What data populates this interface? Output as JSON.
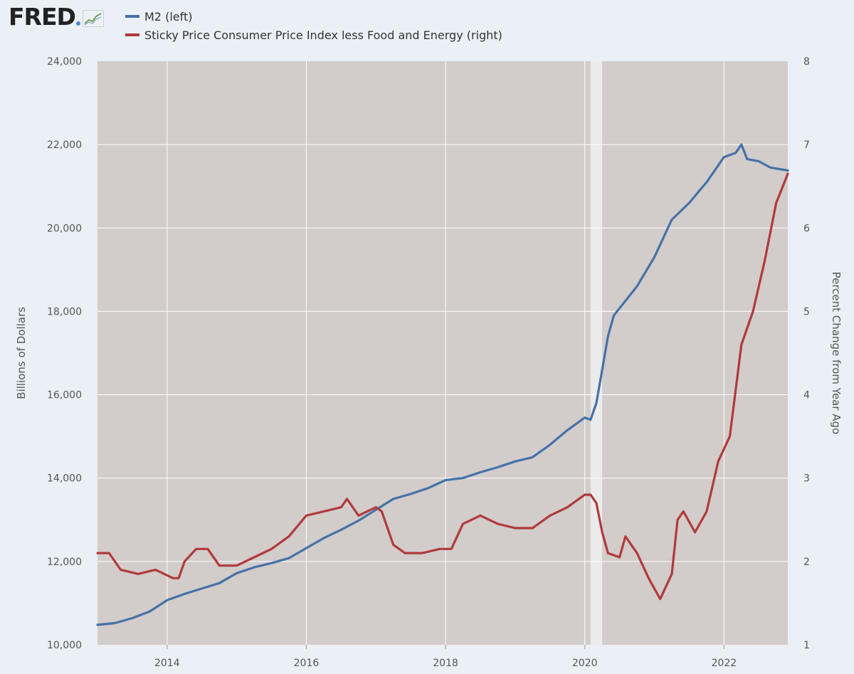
{
  "header": {
    "logo_text": "FRED",
    "logo_icon": "line-chart-icon"
  },
  "colors": {
    "m2": "#4572a7",
    "sticky_cpi": "#b03b3a",
    "plot_bg": "#d2cccb",
    "recession": "#ebebeb",
    "grid": "#ffffff",
    "page_bg": "#eaf0f5"
  },
  "chart_data": {
    "type": "line",
    "title": "",
    "legend_position": "top-left",
    "grid": true,
    "x_axis": {
      "ticks": [
        "2014",
        "2016",
        "2018",
        "2020",
        "2022"
      ],
      "range": [
        "2013-01",
        "2022-12"
      ]
    },
    "y_left": {
      "label": "Billions of Dollars",
      "range": [
        10000,
        24000
      ],
      "ticks": [
        "10,000",
        "12,000",
        "14,000",
        "16,000",
        "18,000",
        "20,000",
        "22,000",
        "24,000"
      ]
    },
    "y_right": {
      "label": "Percent Change from Year Ago",
      "range": [
        1,
        8
      ],
      "ticks": [
        "1",
        "2",
        "3",
        "4",
        "5",
        "6",
        "7",
        "8"
      ]
    },
    "shaded_periods": [
      {
        "start": "2020-02",
        "end": "2020-04",
        "label": "recession"
      }
    ],
    "series": [
      {
        "name": "M2 (left)",
        "axis": "left",
        "color": "#4572a7",
        "points": [
          [
            "2013-01",
            10480
          ],
          [
            "2013-04",
            10520
          ],
          [
            "2013-07",
            10640
          ],
          [
            "2013-10",
            10800
          ],
          [
            "2014-01",
            11070
          ],
          [
            "2014-04",
            11220
          ],
          [
            "2014-07",
            11350
          ],
          [
            "2014-10",
            11480
          ],
          [
            "2015-01",
            11720
          ],
          [
            "2015-04",
            11860
          ],
          [
            "2015-07",
            11960
          ],
          [
            "2015-10",
            12080
          ],
          [
            "2016-01",
            12320
          ],
          [
            "2016-04",
            12560
          ],
          [
            "2016-07",
            12760
          ],
          [
            "2016-10",
            12980
          ],
          [
            "2017-01",
            13240
          ],
          [
            "2017-04",
            13500
          ],
          [
            "2017-07",
            13620
          ],
          [
            "2017-10",
            13760
          ],
          [
            "2018-01",
            13950
          ],
          [
            "2018-04",
            14000
          ],
          [
            "2018-07",
            14140
          ],
          [
            "2018-10",
            14260
          ],
          [
            "2019-01",
            14400
          ],
          [
            "2019-04",
            14500
          ],
          [
            "2019-07",
            14800
          ],
          [
            "2019-10",
            15150
          ],
          [
            "2020-01",
            15450
          ],
          [
            "2020-02",
            15400
          ],
          [
            "2020-03",
            15800
          ],
          [
            "2020-04",
            16600
          ],
          [
            "2020-05",
            17400
          ],
          [
            "2020-06",
            17900
          ],
          [
            "2020-08",
            18250
          ],
          [
            "2020-10",
            18600
          ],
          [
            "2021-01",
            19300
          ],
          [
            "2021-04",
            20200
          ],
          [
            "2021-07",
            20600
          ],
          [
            "2021-10",
            21100
          ],
          [
            "2022-01",
            21700
          ],
          [
            "2022-03",
            21800
          ],
          [
            "2022-04",
            22000
          ],
          [
            "2022-05",
            21650
          ],
          [
            "2022-07",
            21600
          ],
          [
            "2022-09",
            21450
          ],
          [
            "2022-12",
            21380
          ]
        ]
      },
      {
        "name": "Sticky Price Consumer Price Index less Food and Energy (right)",
        "axis": "right",
        "color": "#b03b3a",
        "points": [
          [
            "2013-01",
            2.1
          ],
          [
            "2013-03",
            2.1
          ],
          [
            "2013-05",
            1.9
          ],
          [
            "2013-08",
            1.85
          ],
          [
            "2013-11",
            1.9
          ],
          [
            "2014-02",
            1.8
          ],
          [
            "2014-03",
            1.8
          ],
          [
            "2014-04",
            2.0
          ],
          [
            "2014-06",
            2.15
          ],
          [
            "2014-08",
            2.15
          ],
          [
            "2014-10",
            1.95
          ],
          [
            "2015-01",
            1.95
          ],
          [
            "2015-04",
            2.05
          ],
          [
            "2015-07",
            2.15
          ],
          [
            "2015-10",
            2.3
          ],
          [
            "2016-01",
            2.55
          ],
          [
            "2016-04",
            2.6
          ],
          [
            "2016-07",
            2.65
          ],
          [
            "2016-08",
            2.75
          ],
          [
            "2016-10",
            2.55
          ],
          [
            "2017-01",
            2.65
          ],
          [
            "2017-02",
            2.6
          ],
          [
            "2017-04",
            2.2
          ],
          [
            "2017-06",
            2.1
          ],
          [
            "2017-09",
            2.1
          ],
          [
            "2017-12",
            2.15
          ],
          [
            "2018-02",
            2.15
          ],
          [
            "2018-04",
            2.45
          ],
          [
            "2018-07",
            2.55
          ],
          [
            "2018-10",
            2.45
          ],
          [
            "2019-01",
            2.4
          ],
          [
            "2019-04",
            2.4
          ],
          [
            "2019-07",
            2.55
          ],
          [
            "2019-10",
            2.65
          ],
          [
            "2020-01",
            2.8
          ],
          [
            "2020-02",
            2.8
          ],
          [
            "2020-03",
            2.7
          ],
          [
            "2020-04",
            2.35
          ],
          [
            "2020-05",
            2.1
          ],
          [
            "2020-07",
            2.05
          ],
          [
            "2020-08",
            2.3
          ],
          [
            "2020-10",
            2.1
          ],
          [
            "2020-12",
            1.8
          ],
          [
            "2021-02",
            1.55
          ],
          [
            "2021-04",
            1.85
          ],
          [
            "2021-05",
            2.5
          ],
          [
            "2021-06",
            2.6
          ],
          [
            "2021-08",
            2.35
          ],
          [
            "2021-10",
            2.6
          ],
          [
            "2021-12",
            3.2
          ],
          [
            "2022-02",
            3.5
          ],
          [
            "2022-04",
            4.6
          ],
          [
            "2022-06",
            5.0
          ],
          [
            "2022-08",
            5.6
          ],
          [
            "2022-10",
            6.3
          ],
          [
            "2022-12",
            6.65
          ]
        ]
      }
    ]
  }
}
